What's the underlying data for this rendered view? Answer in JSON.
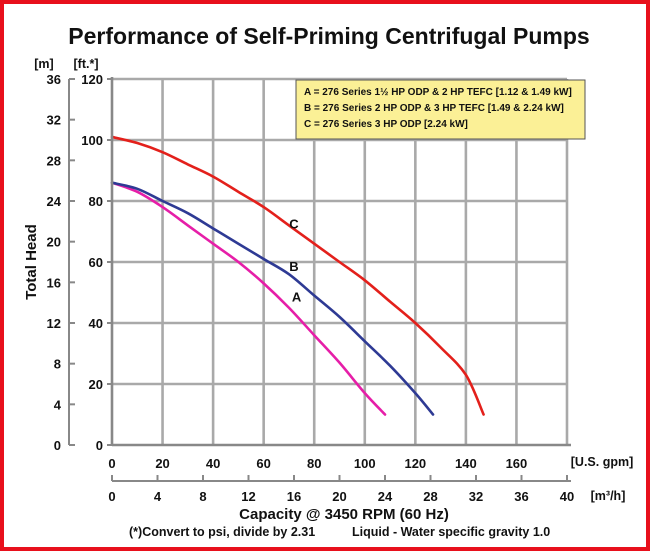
{
  "chart_data": {
    "type": "line",
    "title": "Performance of Self-Priming Centrifugal Pumps",
    "xlabel": "Capacity @ 3450 RPM (60 Hz)",
    "ylabel": "Total Head",
    "x_unit": "[U.S. gpm]",
    "x2_unit": "[m³/h]",
    "y_unit": "[ft.*]",
    "y2_unit": "[m]",
    "xlim": [
      0,
      180
    ],
    "ylim": [
      0,
      120
    ],
    "x_ticks": [
      0,
      20,
      40,
      60,
      80,
      100,
      120,
      140,
      160
    ],
    "x2_ticks": [
      0,
      4,
      8,
      12,
      16,
      20,
      24,
      28,
      32,
      36,
      40
    ],
    "y_ticks": [
      0,
      20,
      40,
      60,
      80,
      100,
      120
    ],
    "y2_ticks": [
      0,
      4,
      8,
      12,
      16,
      20,
      24,
      28,
      32,
      36
    ],
    "grid": true,
    "legend": {
      "placement": "top-right",
      "entries": [
        "A = 276 Series 1½ HP ODP & 2 HP TEFC [1.12 & 1.49 kW]",
        "B = 276 Series 2 HP ODP & 3 HP TEFC [1.49 & 2.24 kW]",
        "C = 276 Series 3 HP ODP [2.24 kW]"
      ]
    },
    "series": [
      {
        "name": "A",
        "color": "#e61ea8",
        "x": [
          0,
          10,
          20,
          30,
          40,
          50,
          60,
          70,
          80,
          90,
          100,
          108
        ],
        "y": [
          86,
          83,
          78,
          72,
          66,
          60,
          53,
          45,
          36,
          27,
          17,
          10
        ]
      },
      {
        "name": "B",
        "color": "#2e3a94",
        "x": [
          0,
          10,
          20,
          30,
          40,
          50,
          60,
          70,
          80,
          90,
          100,
          110,
          120,
          127
        ],
        "y": [
          86,
          84,
          80,
          76,
          71,
          66,
          61,
          56,
          49,
          42,
          34,
          26,
          17,
          10
        ]
      },
      {
        "name": "C",
        "color": "#e3201b",
        "x": [
          0,
          10,
          20,
          30,
          40,
          50,
          60,
          70,
          80,
          90,
          100,
          110,
          120,
          130,
          140,
          147
        ],
        "y": [
          101,
          99,
          96,
          92,
          88,
          83,
          78,
          72,
          66,
          60,
          54,
          47,
          40,
          32,
          23,
          10
        ]
      }
    ],
    "curve_labels": [
      {
        "text": "A",
        "x": 73,
        "y": 47
      },
      {
        "text": "B",
        "x": 72,
        "y": 57
      },
      {
        "text": "C",
        "x": 72,
        "y": 71
      }
    ],
    "footnote_left": "(*)Convert to psi, divide by 2.31",
    "footnote_right": "Liquid - Water specific gravity 1.0"
  }
}
